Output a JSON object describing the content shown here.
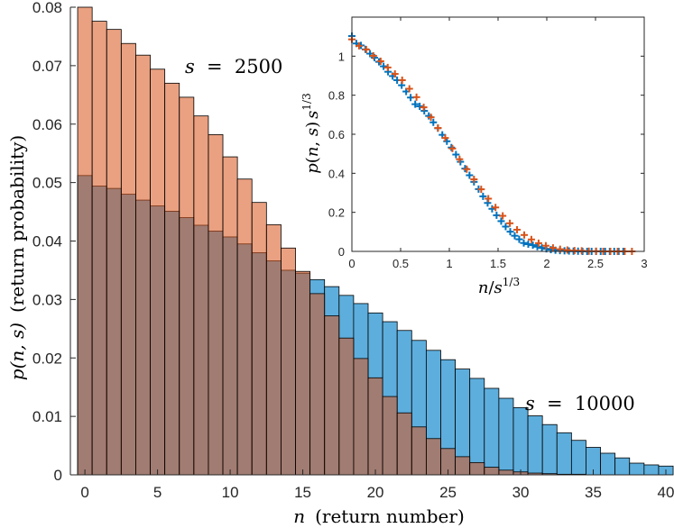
{
  "chart_data": [
    {
      "type": "bar",
      "subtype": "overlaid-histogram",
      "title": "",
      "xlabel": "n (return number)",
      "ylabel": "p(n, s) (return probability)",
      "xlabel_math": "n",
      "xlabel_text": "(return number)",
      "ylabel_math": "p(n, s)",
      "ylabel_text": "(return probability)",
      "xlim": [
        -1,
        40
      ],
      "ylim": [
        0,
        0.08
      ],
      "xticks": [
        0,
        5,
        10,
        15,
        20,
        25,
        30,
        35,
        40
      ],
      "yticks": [
        0,
        0.01,
        0.02,
        0.03,
        0.04,
        0.05,
        0.06,
        0.07,
        0.08
      ],
      "xtick_labels": [
        "0",
        "5",
        "10",
        "15",
        "20",
        "25",
        "30",
        "35",
        "40"
      ],
      "ytick_labels": [
        "0",
        "0.01",
        "0.02",
        "0.03",
        "0.04",
        "0.05",
        "0.06",
        "0.07",
        "0.08"
      ],
      "categories": [
        0,
        1,
        2,
        3,
        4,
        5,
        6,
        7,
        8,
        9,
        10,
        11,
        12,
        13,
        14,
        15,
        16,
        17,
        18,
        19,
        20,
        21,
        22,
        23,
        24,
        25,
        26,
        27,
        28,
        29,
        30,
        31,
        32,
        33,
        34,
        35,
        36,
        37,
        38,
        39,
        40
      ],
      "series": [
        {
          "name": "s = 10000",
          "color": "#0072BD",
          "fill": "#5DAEDD",
          "values": [
            0.0512,
            0.0494,
            0.049,
            0.048,
            0.047,
            0.046,
            0.0451,
            0.044,
            0.0427,
            0.0417,
            0.0407,
            0.0395,
            0.038,
            0.0366,
            0.035,
            0.0345,
            0.0334,
            0.0322,
            0.0307,
            0.0293,
            0.0277,
            0.0262,
            0.0247,
            0.023,
            0.0213,
            0.0197,
            0.0181,
            0.0165,
            0.0148,
            0.0131,
            0.0115,
            0.0101,
            0.0086,
            0.0072,
            0.0059,
            0.0047,
            0.0037,
            0.0029,
            0.002,
            0.0017,
            0.0015
          ]
        },
        {
          "name": "s = 2500",
          "color": "#D95319",
          "fill": "#EA9E7C",
          "values": [
            0.08,
            0.0776,
            0.0762,
            0.0738,
            0.0718,
            0.0694,
            0.067,
            0.0646,
            0.0614,
            0.0582,
            0.0544,
            0.0506,
            0.0466,
            0.0428,
            0.0388,
            0.0348,
            0.031,
            0.0272,
            0.0234,
            0.0199,
            0.0166,
            0.0134,
            0.0106,
            0.0082,
            0.0062,
            0.0045,
            0.0031,
            0.0021,
            0.0013,
            0.0008,
            0.0005,
            0.0003,
            0.0002,
            0.0001,
            0.0001,
            0.0,
            0.0,
            0.0,
            0.0,
            0.0,
            0.0
          ]
        }
      ],
      "annotations": [
        {
          "lhs": "s",
          "eq": "=",
          "rhs": "2500"
        },
        {
          "lhs": "s",
          "eq": "=",
          "rhs": "10000"
        }
      ]
    },
    {
      "type": "scatter",
      "title": "",
      "xlabel": "n/s^(1/3)",
      "ylabel": "p(n,s) s^(1/3)",
      "xlim": [
        0,
        3
      ],
      "ylim": [
        0,
        1.2
      ],
      "xticks": [
        0,
        0.5,
        1,
        1.5,
        2,
        2.5,
        3
      ],
      "yticks": [
        0,
        0.2,
        0.4,
        0.6,
        0.8,
        1
      ],
      "xtick_labels": [
        "0",
        "0.5",
        "1",
        "1.5",
        "2",
        "2.5",
        "3"
      ],
      "ytick_labels": [
        "0",
        "0.2",
        "0.4",
        "0.6",
        "0.8",
        "1"
      ],
      "series": [
        {
          "name": "s = 10000",
          "color": "#0072BD",
          "marker": "+",
          "points": [
            [
              0.0,
              1.103
            ],
            [
              0.0464,
              1.065
            ],
            [
              0.0928,
              1.055
            ],
            [
              0.139,
              1.035
            ],
            [
              0.186,
              1.013
            ],
            [
              0.232,
              0.992
            ],
            [
              0.278,
              0.971
            ],
            [
              0.325,
              0.948
            ],
            [
              0.371,
              0.92
            ],
            [
              0.418,
              0.898
            ],
            [
              0.464,
              0.877
            ],
            [
              0.511,
              0.851
            ],
            [
              0.557,
              0.819
            ],
            [
              0.603,
              0.788
            ],
            [
              0.65,
              0.754
            ],
            [
              0.696,
              0.743
            ],
            [
              0.743,
              0.72
            ],
            [
              0.789,
              0.694
            ],
            [
              0.836,
              0.661
            ],
            [
              0.882,
              0.631
            ],
            [
              0.928,
              0.597
            ],
            [
              0.975,
              0.564
            ],
            [
              1.021,
              0.532
            ],
            [
              1.068,
              0.496
            ],
            [
              1.114,
              0.459
            ],
            [
              1.161,
              0.424
            ],
            [
              1.207,
              0.39
            ],
            [
              1.253,
              0.356
            ],
            [
              1.3,
              0.319
            ],
            [
              1.346,
              0.282
            ],
            [
              1.393,
              0.248
            ],
            [
              1.439,
              0.218
            ],
            [
              1.485,
              0.185
            ],
            [
              1.532,
              0.155
            ],
            [
              1.578,
              0.127
            ],
            [
              1.625,
              0.101
            ],
            [
              1.671,
              0.08
            ],
            [
              1.717,
              0.062
            ],
            [
              1.764,
              0.043
            ],
            [
              1.81,
              0.037
            ],
            [
              1.857,
              0.032
            ],
            [
              1.903,
              0.024
            ],
            [
              1.95,
              0.018
            ],
            [
              1.996,
              0.013
            ],
            [
              2.042,
              0.009
            ],
            [
              2.089,
              0.006
            ],
            [
              2.135,
              0.004
            ],
            [
              2.182,
              0.003
            ],
            [
              2.228,
              0.002
            ],
            [
              2.274,
              0.001
            ],
            [
              2.321,
              0.001
            ],
            [
              2.367,
              0.0
            ],
            [
              2.414,
              0.0
            ],
            [
              2.46,
              0.0
            ],
            [
              2.506,
              0.0
            ],
            [
              2.553,
              0.0
            ],
            [
              2.599,
              0.0
            ],
            [
              2.646,
              0.0
            ],
            [
              2.692,
              0.0
            ],
            [
              2.738,
              0.0
            ],
            [
              2.785,
              0.0
            ]
          ]
        },
        {
          "name": "s = 2500",
          "color": "#D95319",
          "marker": "+",
          "points": [
            [
              0.0,
              1.086
            ],
            [
              0.0737,
              1.053
            ],
            [
              0.147,
              1.034
            ],
            [
              0.221,
              1.002
            ],
            [
              0.295,
              0.974
            ],
            [
              0.368,
              0.942
            ],
            [
              0.442,
              0.909
            ],
            [
              0.516,
              0.877
            ],
            [
              0.59,
              0.833
            ],
            [
              0.663,
              0.79
            ],
            [
              0.737,
              0.738
            ],
            [
              0.811,
              0.687
            ],
            [
              0.884,
              0.632
            ],
            [
              0.958,
              0.581
            ],
            [
              1.032,
              0.527
            ],
            [
              1.105,
              0.472
            ],
            [
              1.179,
              0.421
            ],
            [
              1.253,
              0.369
            ],
            [
              1.327,
              0.318
            ],
            [
              1.4,
              0.27
            ],
            [
              1.474,
              0.225
            ],
            [
              1.548,
              0.182
            ],
            [
              1.621,
              0.144
            ],
            [
              1.695,
              0.111
            ],
            [
              1.769,
              0.084
            ],
            [
              1.842,
              0.061
            ],
            [
              1.916,
              0.042
            ],
            [
              1.99,
              0.029
            ],
            [
              2.064,
              0.018
            ],
            [
              2.137,
              0.011
            ],
            [
              2.211,
              0.007
            ],
            [
              2.285,
              0.004
            ],
            [
              2.358,
              0.003
            ],
            [
              2.432,
              0.001
            ],
            [
              2.506,
              0.001
            ],
            [
              2.579,
              0.0
            ],
            [
              2.653,
              0.0
            ],
            [
              2.727,
              0.0
            ],
            [
              2.8,
              0.0
            ],
            [
              2.874,
              0.0
            ]
          ]
        }
      ]
    }
  ]
}
